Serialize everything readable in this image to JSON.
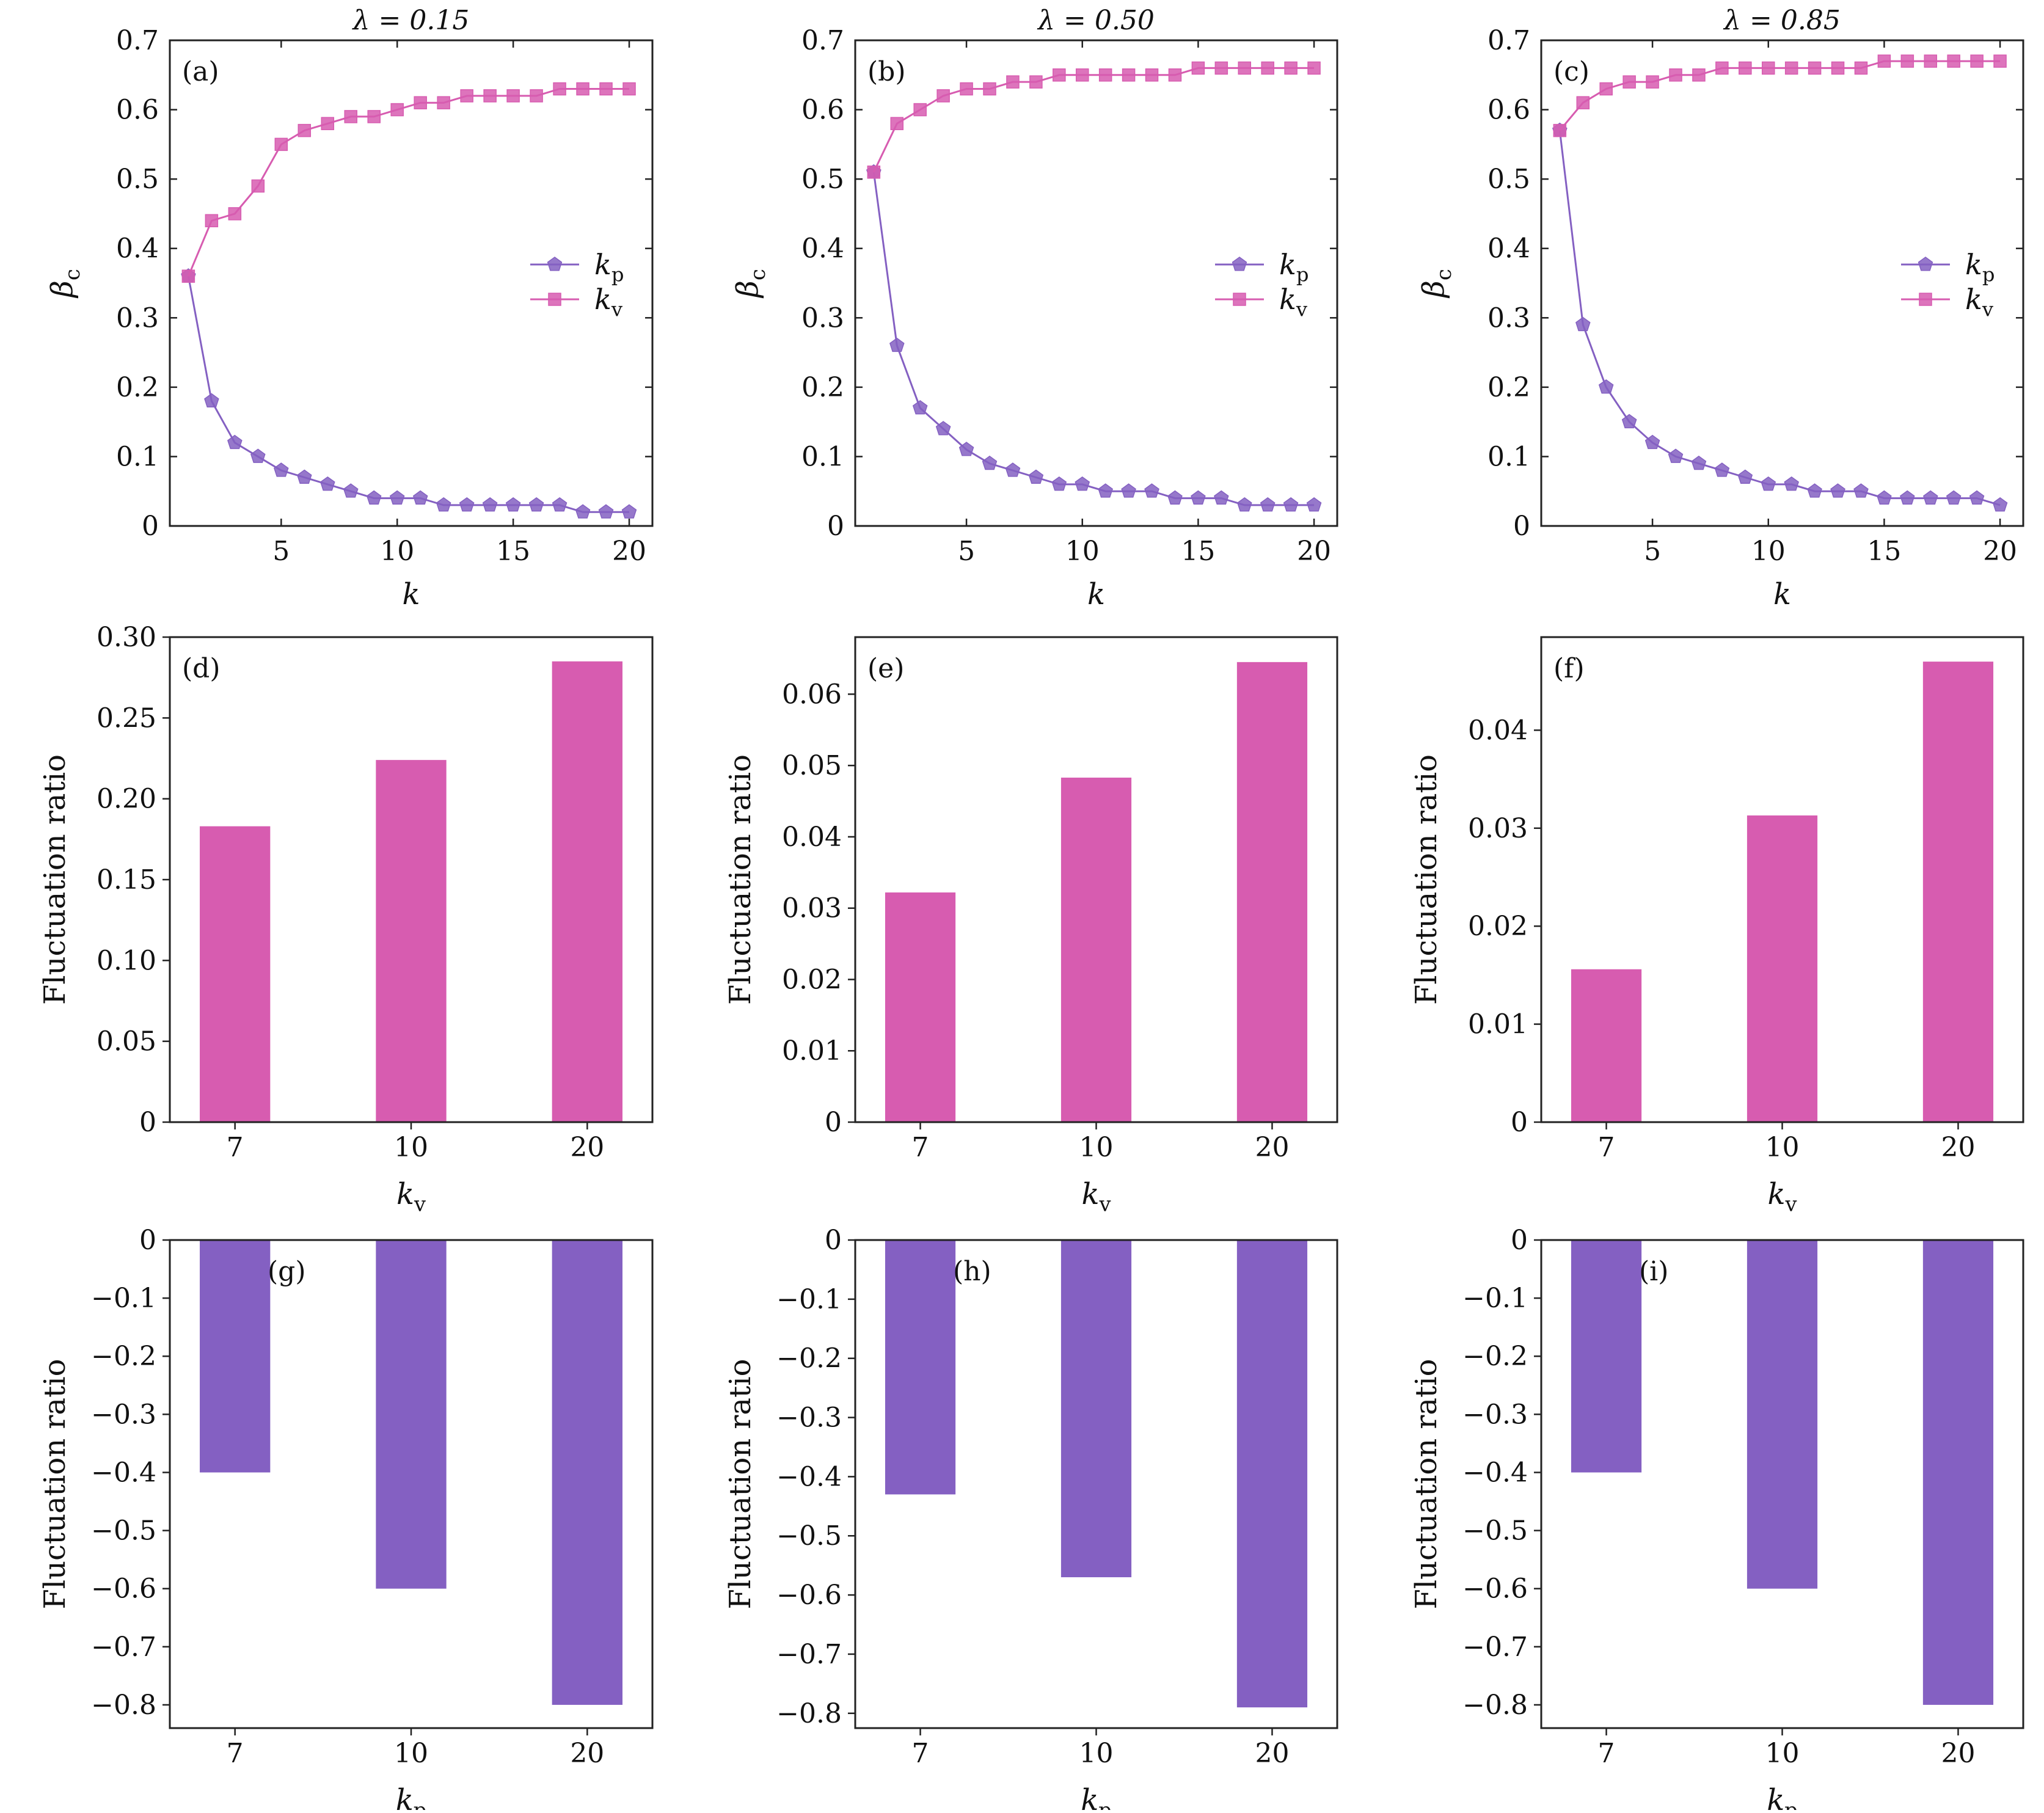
{
  "colors": {
    "kp": "#8460c2",
    "kv": "#d75cb0",
    "axis": "#222222"
  },
  "chart_data": [
    {
      "panel": "(a)",
      "type": "line",
      "title": "λ = 0.15",
      "xlabel": "k",
      "ylabel": "βc",
      "xlim": [
        0.2,
        21
      ],
      "ylim": [
        0,
        0.7
      ],
      "xticks": [
        {
          "v": 5,
          "label": "5"
        },
        {
          "v": 10,
          "label": "10"
        },
        {
          "v": 15,
          "label": "15"
        },
        {
          "v": 20,
          "label": "20"
        }
      ],
      "yticks": [
        {
          "v": 0,
          "label": "0"
        },
        {
          "v": 0.1,
          "label": "0.1"
        },
        {
          "v": 0.2,
          "label": "0.2"
        },
        {
          "v": 0.3,
          "label": "0.3"
        },
        {
          "v": 0.4,
          "label": "0.4"
        },
        {
          "v": 0.5,
          "label": "0.5"
        },
        {
          "v": 0.6,
          "label": "0.6"
        },
        {
          "v": 0.7,
          "label": "0.7"
        }
      ],
      "legend": "right-middle",
      "x": [
        1,
        2,
        3,
        4,
        5,
        6,
        7,
        8,
        9,
        10,
        11,
        12,
        13,
        14,
        15,
        16,
        17,
        18,
        19,
        20
      ],
      "series": [
        {
          "name": "kp",
          "sub": "p",
          "marker": "pentagon",
          "color": "#8460c2",
          "values": [
            0.36,
            0.18,
            0.12,
            0.1,
            0.08,
            0.07,
            0.06,
            0.05,
            0.04,
            0.04,
            0.04,
            0.03,
            0.03,
            0.03,
            0.03,
            0.03,
            0.03,
            0.02,
            0.02,
            0.02
          ]
        },
        {
          "name": "kv",
          "sub": "v",
          "marker": "square",
          "color": "#d75cb0",
          "values": [
            0.36,
            0.44,
            0.45,
            0.49,
            0.55,
            0.57,
            0.58,
            0.59,
            0.59,
            0.6,
            0.61,
            0.61,
            0.62,
            0.62,
            0.62,
            0.62,
            0.63,
            0.63,
            0.63,
            0.63
          ]
        }
      ]
    },
    {
      "panel": "(b)",
      "type": "line",
      "title": "λ = 0.50",
      "xlabel": "k",
      "ylabel": "βc",
      "xlim": [
        0.2,
        21
      ],
      "ylim": [
        0,
        0.7
      ],
      "xticks": [
        {
          "v": 5,
          "label": "5"
        },
        {
          "v": 10,
          "label": "10"
        },
        {
          "v": 15,
          "label": "15"
        },
        {
          "v": 20,
          "label": "20"
        }
      ],
      "yticks": [
        {
          "v": 0,
          "label": "0"
        },
        {
          "v": 0.1,
          "label": "0.1"
        },
        {
          "v": 0.2,
          "label": "0.2"
        },
        {
          "v": 0.3,
          "label": "0.3"
        },
        {
          "v": 0.4,
          "label": "0.4"
        },
        {
          "v": 0.5,
          "label": "0.5"
        },
        {
          "v": 0.6,
          "label": "0.6"
        },
        {
          "v": 0.7,
          "label": "0.7"
        }
      ],
      "legend": "right-middle",
      "x": [
        1,
        2,
        3,
        4,
        5,
        6,
        7,
        8,
        9,
        10,
        11,
        12,
        13,
        14,
        15,
        16,
        17,
        18,
        19,
        20
      ],
      "series": [
        {
          "name": "kp",
          "sub": "p",
          "marker": "pentagon",
          "color": "#8460c2",
          "values": [
            0.51,
            0.26,
            0.17,
            0.14,
            0.11,
            0.09,
            0.08,
            0.07,
            0.06,
            0.06,
            0.05,
            0.05,
            0.05,
            0.04,
            0.04,
            0.04,
            0.03,
            0.03,
            0.03,
            0.03
          ]
        },
        {
          "name": "kv",
          "sub": "v",
          "marker": "square",
          "color": "#d75cb0",
          "values": [
            0.51,
            0.58,
            0.6,
            0.62,
            0.63,
            0.63,
            0.64,
            0.64,
            0.65,
            0.65,
            0.65,
            0.65,
            0.65,
            0.65,
            0.66,
            0.66,
            0.66,
            0.66,
            0.66,
            0.66
          ]
        }
      ]
    },
    {
      "panel": "(c)",
      "type": "line",
      "title": "λ = 0.85",
      "xlabel": "k",
      "ylabel": "βc",
      "xlim": [
        0.2,
        21
      ],
      "ylim": [
        0,
        0.7
      ],
      "xticks": [
        {
          "v": 5,
          "label": "5"
        },
        {
          "v": 10,
          "label": "10"
        },
        {
          "v": 15,
          "label": "15"
        },
        {
          "v": 20,
          "label": "20"
        }
      ],
      "yticks": [
        {
          "v": 0,
          "label": "0"
        },
        {
          "v": 0.1,
          "label": "0.1"
        },
        {
          "v": 0.2,
          "label": "0.2"
        },
        {
          "v": 0.3,
          "label": "0.3"
        },
        {
          "v": 0.4,
          "label": "0.4"
        },
        {
          "v": 0.5,
          "label": "0.5"
        },
        {
          "v": 0.6,
          "label": "0.6"
        },
        {
          "v": 0.7,
          "label": "0.7"
        }
      ],
      "legend": "right-middle",
      "x": [
        1,
        2,
        3,
        4,
        5,
        6,
        7,
        8,
        9,
        10,
        11,
        12,
        13,
        14,
        15,
        16,
        17,
        18,
        19,
        20
      ],
      "series": [
        {
          "name": "kp",
          "sub": "p",
          "marker": "pentagon",
          "color": "#8460c2",
          "values": [
            0.57,
            0.29,
            0.2,
            0.15,
            0.12,
            0.1,
            0.09,
            0.08,
            0.07,
            0.06,
            0.06,
            0.05,
            0.05,
            0.05,
            0.04,
            0.04,
            0.04,
            0.04,
            0.04,
            0.03
          ]
        },
        {
          "name": "kv",
          "sub": "v",
          "marker": "square",
          "color": "#d75cb0",
          "values": [
            0.57,
            0.61,
            0.63,
            0.64,
            0.64,
            0.65,
            0.65,
            0.66,
            0.66,
            0.66,
            0.66,
            0.66,
            0.66,
            0.66,
            0.67,
            0.67,
            0.67,
            0.67,
            0.67,
            0.67
          ]
        }
      ]
    },
    {
      "panel": "(d)",
      "type": "bar",
      "xlabel": "k",
      "xsub": "v",
      "ylabel": "Fluctuation ratio",
      "ylim": [
        0,
        0.3
      ],
      "color": "#d75cb0",
      "categories": [
        "7",
        "10",
        "20"
      ],
      "values": [
        0.183,
        0.224,
        0.285
      ],
      "yticks": [
        {
          "v": 0,
          "label": "0"
        },
        {
          "v": 0.05,
          "label": "0.05"
        },
        {
          "v": 0.1,
          "label": "0.10"
        },
        {
          "v": 0.15,
          "label": "0.15"
        },
        {
          "v": 0.2,
          "label": "0.20"
        },
        {
          "v": 0.25,
          "label": "0.25"
        },
        {
          "v": 0.3,
          "label": "0.30"
        }
      ]
    },
    {
      "panel": "(e)",
      "type": "bar",
      "xlabel": "k",
      "xsub": "v",
      "ylabel": "Fluctuation ratio",
      "ylim": [
        0,
        0.068
      ],
      "color": "#d75cb0",
      "categories": [
        "7",
        "10",
        "20"
      ],
      "values": [
        0.0322,
        0.0483,
        0.0645
      ],
      "yticks": [
        {
          "v": 0,
          "label": "0"
        },
        {
          "v": 0.01,
          "label": "0.01"
        },
        {
          "v": 0.02,
          "label": "0.02"
        },
        {
          "v": 0.03,
          "label": "0.03"
        },
        {
          "v": 0.04,
          "label": "0.04"
        },
        {
          "v": 0.05,
          "label": "0.05"
        },
        {
          "v": 0.06,
          "label": "0.06"
        }
      ]
    },
    {
      "panel": "(f)",
      "type": "bar",
      "xlabel": "k",
      "xsub": "v",
      "ylabel": "Fluctuation ratio",
      "ylim": [
        0,
        0.0495
      ],
      "color": "#d75cb0",
      "categories": [
        "7",
        "10",
        "20"
      ],
      "values": [
        0.0156,
        0.0313,
        0.047
      ],
      "yticks": [
        {
          "v": 0,
          "label": "0"
        },
        {
          "v": 0.01,
          "label": "0.01"
        },
        {
          "v": 0.02,
          "label": "0.02"
        },
        {
          "v": 0.03,
          "label": "0.03"
        },
        {
          "v": 0.04,
          "label": "0.04"
        }
      ]
    },
    {
      "panel": "(g)",
      "type": "bar",
      "xlabel": "k",
      "xsub": "p",
      "ylabel": "Fluctuation ratio",
      "ylim": [
        -0.84,
        0
      ],
      "color": "#8460c2",
      "categories": [
        "7",
        "10",
        "20"
      ],
      "values": [
        -0.4,
        -0.6,
        -0.8
      ],
      "yticks": [
        {
          "v": 0,
          "label": "0"
        },
        {
          "v": -0.1,
          "label": "−0.1"
        },
        {
          "v": -0.2,
          "label": "−0.2"
        },
        {
          "v": -0.3,
          "label": "−0.3"
        },
        {
          "v": -0.4,
          "label": "−0.4"
        },
        {
          "v": -0.5,
          "label": "−0.5"
        },
        {
          "v": -0.6,
          "label": "−0.6"
        },
        {
          "v": -0.7,
          "label": "−0.7"
        },
        {
          "v": -0.8,
          "label": "−0.8"
        }
      ]
    },
    {
      "panel": "(h)",
      "type": "bar",
      "xlabel": "k",
      "xsub": "p",
      "ylabel": "Fluctuation ratio",
      "ylim": [
        -0.825,
        0
      ],
      "color": "#8460c2",
      "categories": [
        "7",
        "10",
        "20"
      ],
      "values": [
        -0.43,
        -0.57,
        -0.79
      ],
      "yticks": [
        {
          "v": 0,
          "label": "0"
        },
        {
          "v": -0.1,
          "label": "−0.1"
        },
        {
          "v": -0.2,
          "label": "−0.2"
        },
        {
          "v": -0.3,
          "label": "−0.3"
        },
        {
          "v": -0.4,
          "label": "−0.4"
        },
        {
          "v": -0.5,
          "label": "−0.5"
        },
        {
          "v": -0.6,
          "label": "−0.6"
        },
        {
          "v": -0.7,
          "label": "−0.7"
        },
        {
          "v": -0.8,
          "label": "−0.8"
        }
      ]
    },
    {
      "panel": "(i)",
      "type": "bar",
      "xlabel": "k",
      "xsub": "p",
      "ylabel": "Fluctuation ratio",
      "ylim": [
        -0.84,
        0
      ],
      "color": "#8460c2",
      "categories": [
        "7",
        "10",
        "20"
      ],
      "values": [
        -0.4,
        -0.6,
        -0.8
      ],
      "yticks": [
        {
          "v": 0,
          "label": "0"
        },
        {
          "v": -0.1,
          "label": "−0.1"
        },
        {
          "v": -0.2,
          "label": "−0.2"
        },
        {
          "v": -0.3,
          "label": "−0.3"
        },
        {
          "v": -0.4,
          "label": "−0.4"
        },
        {
          "v": -0.5,
          "label": "−0.5"
        },
        {
          "v": -0.6,
          "label": "−0.6"
        },
        {
          "v": -0.7,
          "label": "−0.7"
        },
        {
          "v": -0.8,
          "label": "−0.8"
        }
      ]
    }
  ]
}
